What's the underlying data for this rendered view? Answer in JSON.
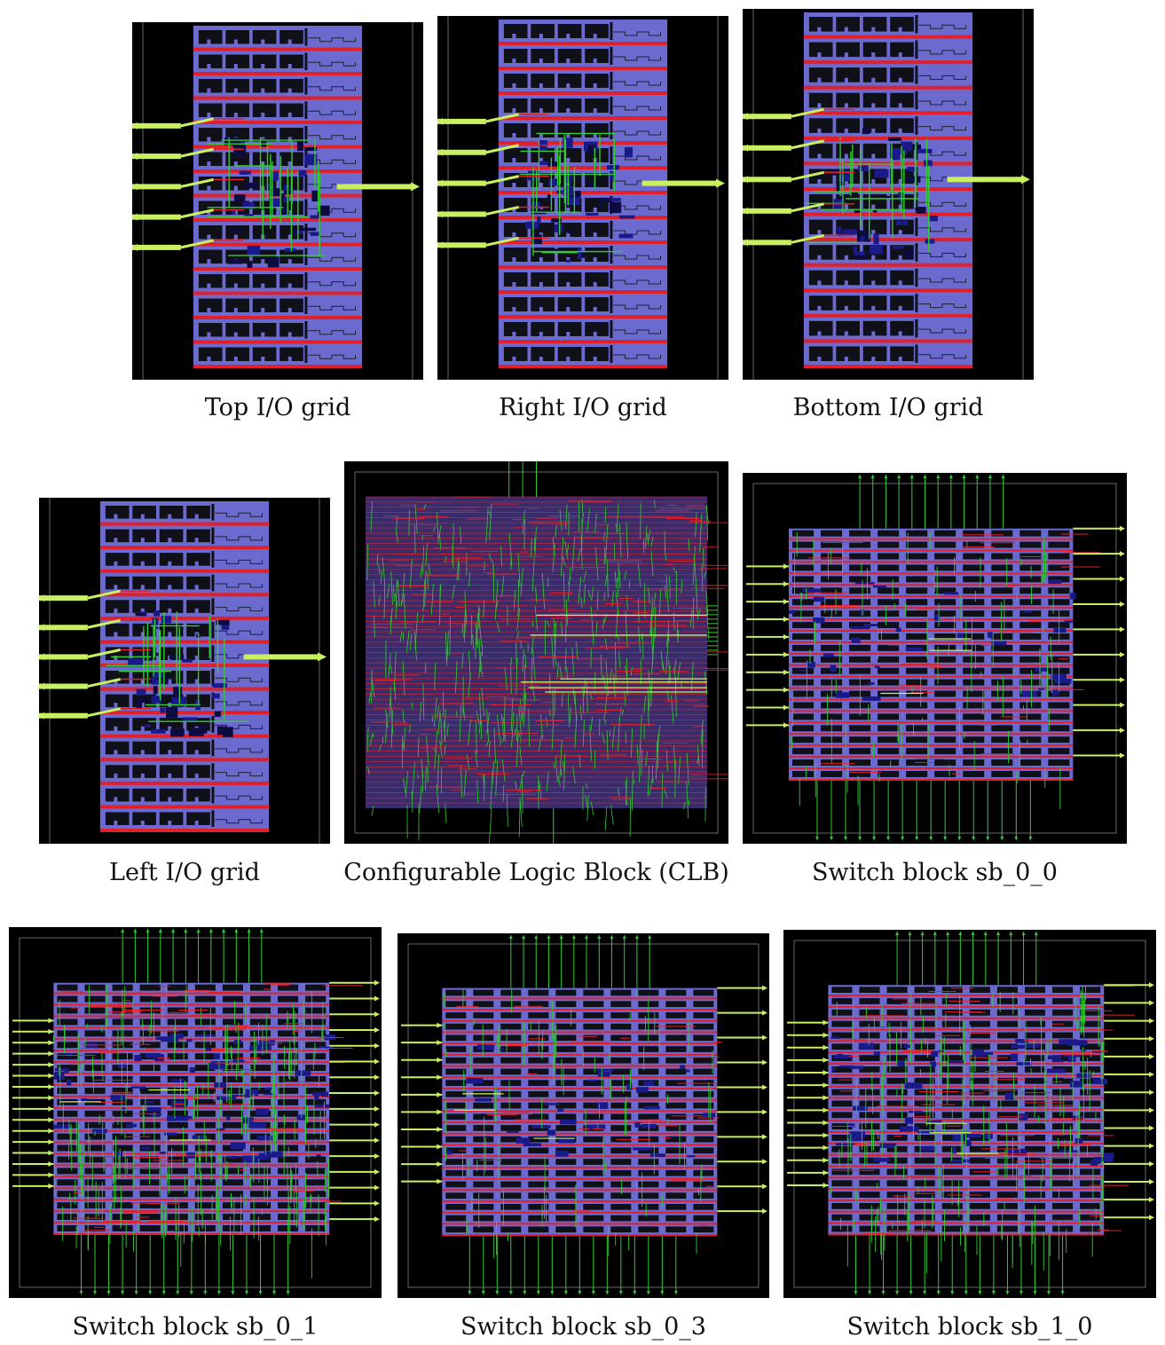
{
  "figure": {
    "colors": {
      "background": "#000000",
      "cell_fill": "#6b6bcf",
      "cell_dark": "#1a1a8a",
      "metal_red": "#e0202a",
      "route_green": "#33cc33",
      "pin_yellow": "#c8f060",
      "outline": "#d8d8d8"
    },
    "panels": [
      {
        "id": "top-io",
        "caption": "Top I/O grid"
      },
      {
        "id": "right-io",
        "caption": "Right I/O grid"
      },
      {
        "id": "bottom-io",
        "caption": "Bottom I/O grid"
      },
      {
        "id": "left-io",
        "caption": "Left I/O grid"
      },
      {
        "id": "clb",
        "caption": "Configurable Logic Block (CLB)"
      },
      {
        "id": "sb-0-0",
        "caption": "Switch block sb_0_0"
      },
      {
        "id": "sb-0-1",
        "caption": "Switch block sb_0_1"
      },
      {
        "id": "sb-0-3",
        "caption": "Switch block sb_0_3"
      },
      {
        "id": "sb-1-0",
        "caption": "Switch block sb_1_0"
      }
    ]
  }
}
